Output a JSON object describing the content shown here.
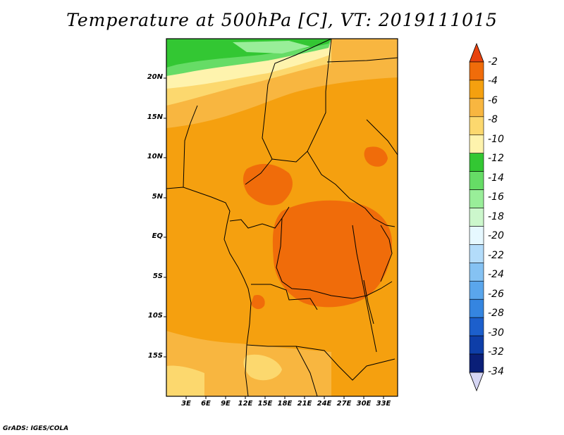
{
  "title": "Temperature at 500hPa [C], VT: 2019111015",
  "credit": "GrADS: IGES/COLA",
  "map": {
    "lat_labels": [
      "20N",
      "15N",
      "10N",
      "5N",
      "EQ",
      "5S",
      "10S",
      "15S"
    ],
    "lon_labels": [
      "3E",
      "6E",
      "9E",
      "12E",
      "15E",
      "18E",
      "21E",
      "24E",
      "27E",
      "30E",
      "33E"
    ]
  },
  "colorbar": {
    "labels": [
      "-2",
      "-4",
      "-6",
      "-8",
      "-10",
      "-12",
      "-14",
      "-16",
      "-18",
      "-20",
      "-22",
      "-24",
      "-26",
      "-28",
      "-30",
      "-32",
      "-34"
    ],
    "colors": [
      "#e8420e",
      "#f06c0a",
      "#f5a00f",
      "#f8b640",
      "#fcd86e",
      "#fef3ad",
      "#33c733",
      "#66dc66",
      "#99ee99",
      "#ccf7cc",
      "#e6f8ff",
      "#b3dcfa",
      "#85c2f3",
      "#5aa6ec",
      "#3585e0",
      "#1c5fcc",
      "#0e3ea8",
      "#0a1f78",
      "#d6d6f4"
    ]
  }
}
